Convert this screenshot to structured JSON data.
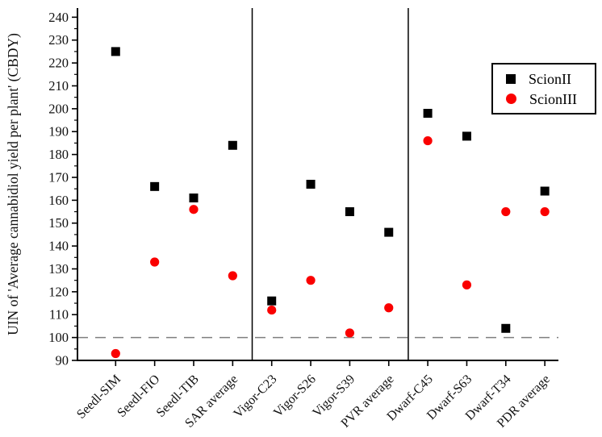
{
  "chart_data": {
    "type": "scatter",
    "title": "",
    "xlabel": "",
    "ylabel": "UIN of 'Average cannabidiol yield per plant' (CBDY)",
    "ylim": [
      90,
      244
    ],
    "ytick_label_min": 90,
    "ytick_label_max": 240,
    "ytick_major_interval": 10,
    "ytick_minor_interval": 5,
    "grid": false,
    "legend_position": "top-right",
    "reference_line_y": 100,
    "reference_line_style": "dashed",
    "reference_line_color": "#7f7f7f",
    "axis_color": "#000000",
    "group_separators_after_index": [
      3,
      7
    ],
    "categories": [
      "Seedl-SIM",
      "Seedl-FIO",
      "Seedl-TIB",
      "SAR average",
      "Vigor-C23",
      "Vigor-S26",
      "Vigor-S39",
      "PVR average",
      "Dwarf-C45",
      "Dwarf-S63",
      "Dwarf-T34",
      "PDR average"
    ],
    "series": [
      {
        "name": "ScionII",
        "marker": "square",
        "color": "#000000",
        "values": [
          225,
          166,
          161,
          184,
          116,
          167,
          155,
          146,
          198,
          188,
          104,
          164
        ]
      },
      {
        "name": "ScionIII",
        "marker": "circle",
        "color": "#fa0000",
        "values": [
          93,
          133,
          156,
          127,
          112,
          125,
          102,
          113,
          186,
          123,
          155,
          155
        ]
      }
    ]
  }
}
